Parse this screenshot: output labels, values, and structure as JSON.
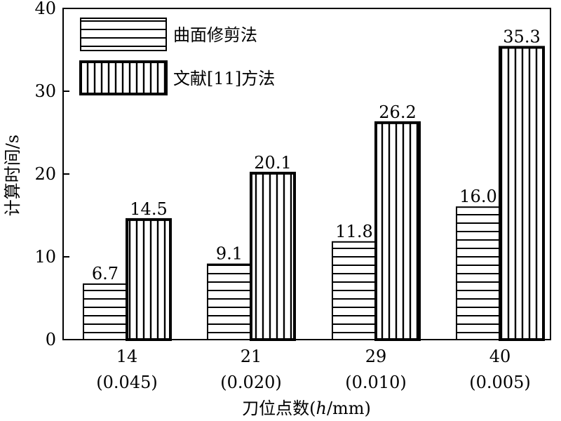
{
  "chart_data": {
    "type": "bar",
    "xlabel_prefix": "刀位点数(",
    "xlabel_var": "h",
    "xlabel_suffix": "/mm)",
    "ylabel": "计算时间/s",
    "ylim": [
      0,
      40
    ],
    "yticks": [
      "0",
      "10",
      "20",
      "30",
      "40"
    ],
    "categories": [
      "14",
      "21",
      "29",
      "40"
    ],
    "category_sub": [
      "(0.045)",
      "(0.020)",
      "(0.010)",
      "(0.005)"
    ],
    "series": [
      {
        "name": "曲面修剪法",
        "values": [
          6.7,
          9.1,
          11.8,
          16.0
        ],
        "labels": [
          "6.7",
          "9.1",
          "11.8",
          "16.0"
        ],
        "pattern": "horizontal-stripes"
      },
      {
        "name": "文献[11]方法",
        "values": [
          14.5,
          20.1,
          26.2,
          35.3
        ],
        "labels": [
          "14.5",
          "20.1",
          "26.2",
          "35.3"
        ],
        "pattern": "vertical-stripes"
      }
    ],
    "legend_position": "top-left",
    "grid": false,
    "colors": {
      "line": "#000000",
      "background": "#ffffff"
    }
  }
}
